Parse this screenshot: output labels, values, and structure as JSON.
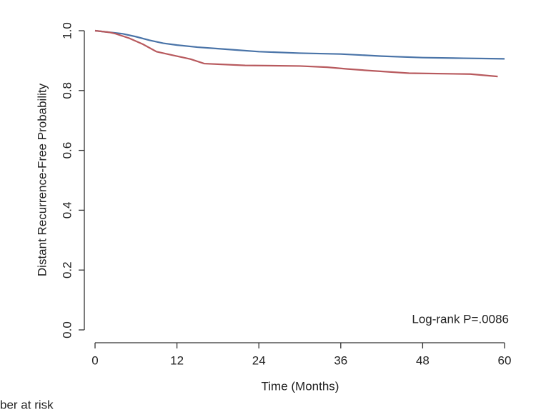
{
  "chart_data": {
    "type": "line",
    "ylabel": "Distant Recurrence-Free Probability",
    "xlabel": "Time (Months)",
    "annotation": "Log-rank P=.0086",
    "footer": "ber at risk",
    "xlim": [
      0,
      60
    ],
    "xticks": [
      0,
      12,
      24,
      36,
      48,
      60
    ],
    "ylim": [
      0,
      1
    ],
    "yticks": [
      {
        "value": 0,
        "label": "0.0"
      },
      {
        "value": 0.2,
        "label": "0.2"
      },
      {
        "value": 0.4,
        "label": "0.4"
      },
      {
        "value": 0.6,
        "label": "0.6"
      },
      {
        "value": 0.8,
        "label": "0.8"
      },
      {
        "value": 1,
        "label": "1.0"
      }
    ],
    "series": [
      {
        "color": "#4a74a8",
        "x": [
          0,
          2,
          4,
          6,
          8,
          10,
          12,
          15,
          18,
          21,
          24,
          30,
          36,
          42,
          48,
          54,
          60
        ],
        "values": [
          1,
          0.995,
          0.99,
          0.98,
          0.968,
          0.958,
          0.952,
          0.945,
          0.94,
          0.935,
          0.93,
          0.925,
          0.922,
          0.915,
          0.91,
          0.908,
          0.906
        ]
      },
      {
        "color": "#b85a5e",
        "x": [
          0,
          2,
          3,
          5,
          7,
          9,
          11,
          14,
          16,
          22,
          30,
          34,
          37,
          40,
          46,
          55,
          59
        ],
        "values": [
          1,
          0.995,
          0.99,
          0.975,
          0.955,
          0.93,
          0.92,
          0.905,
          0.89,
          0.884,
          0.882,
          0.878,
          0.872,
          0.867,
          0.858,
          0.855,
          0.847
        ]
      }
    ]
  }
}
